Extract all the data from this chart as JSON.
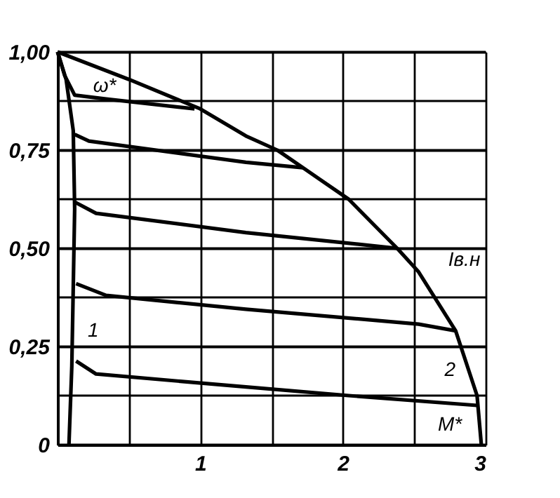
{
  "chart_data": {
    "type": "line",
    "xlim": [
      0,
      3
    ],
    "ylim": [
      0,
      1
    ],
    "xticks": [
      {
        "value": 0,
        "label": null
      },
      {
        "value": 0.5,
        "label": null
      },
      1,
      {
        "value": 1.5,
        "label": null
      },
      2,
      {
        "value": 2.5,
        "label": null
      },
      3
    ],
    "yticks": [
      0,
      {
        "value": 0.125,
        "label": null
      },
      {
        "value": 0.25,
        "label": "0,25"
      },
      {
        "value": 0.375,
        "label": null
      },
      {
        "value": 0.5,
        "label": "0,50"
      },
      {
        "value": 0.625,
        "label": null
      },
      {
        "value": 0.75,
        "label": "0,75"
      },
      {
        "value": 0.875,
        "label": null
      },
      {
        "value": 1,
        "label": "1,00"
      }
    ],
    "grid": true,
    "legend": false,
    "marker": "none",
    "line_style": "solid",
    "series": [
      {
        "color": "#000000",
        "x": [
          0,
          0.5,
          1.0,
          1.32,
          1.54,
          1.72,
          2.04,
          2.38,
          2.53,
          2.79,
          2.94,
          2.97
        ],
        "values": [
          1,
          0.93,
          0.855,
          0.786,
          0.75,
          0.705,
          0.625,
          0.5,
          0.44,
          0.29,
          0.125,
          0
        ]
      },
      {
        "color": "#000000",
        "x": [
          0,
          0.05,
          0.12,
          0.34,
          0.96
        ],
        "values": [
          1,
          0.94,
          0.89,
          0.88,
          0.855
        ]
      },
      {
        "color": "#000000",
        "x": [
          0,
          0.06,
          0.11,
          0.12,
          0.11,
          0.1,
          0.08
        ],
        "values": [
          1,
          0.93,
          0.8,
          0.6,
          0.4,
          0.2,
          0
        ]
      },
      {
        "color": "#000000",
        "x": [
          0.12,
          0.22,
          1.32,
          1.72
        ],
        "values": [
          0.79,
          0.773,
          0.719,
          0.705
        ]
      },
      {
        "color": "#000000",
        "x": [
          0.12,
          0.27,
          1.32,
          2.38
        ],
        "values": [
          0.618,
          0.589,
          0.54,
          0.5
        ]
      },
      {
        "color": "#000000",
        "x": [
          0.13,
          0.34,
          1.32,
          2.53,
          2.79
        ],
        "values": [
          0.41,
          0.38,
          0.345,
          0.307,
          0.29
        ]
      },
      {
        "color": "#000000",
        "x": [
          0.13,
          0.27,
          1.32,
          2.04,
          2.94
        ],
        "values": [
          0.213,
          0.18,
          0.147,
          0.125,
          0.1
        ]
      }
    ],
    "annotations": [
      "ω*",
      "Iв.н",
      "1",
      "2",
      "M*"
    ]
  }
}
